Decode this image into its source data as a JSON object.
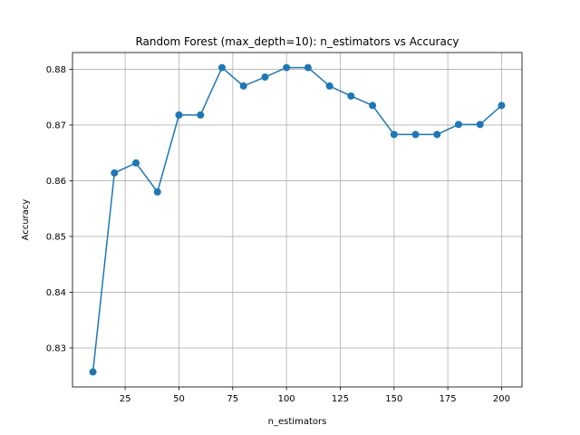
{
  "chart_data": {
    "type": "line",
    "title": "Random Forest (max_depth=10): n_estimators vs Accuracy",
    "xlabel": "n_estimators",
    "ylabel": "Accuracy",
    "x": [
      10,
      20,
      30,
      40,
      50,
      60,
      70,
      80,
      90,
      100,
      110,
      120,
      130,
      140,
      150,
      160,
      170,
      180,
      190,
      200
    ],
    "series": [
      {
        "values": [
          0.8257,
          0.8614,
          0.8632,
          0.858,
          0.8718,
          0.8718,
          0.8803,
          0.877,
          0.8786,
          0.8803,
          0.8803,
          0.877,
          0.8752,
          0.8735,
          0.8683,
          0.8683,
          0.8683,
          0.8701,
          0.8701,
          0.8735
        ],
        "color": "#1f77b4",
        "marker": "circle"
      }
    ],
    "xlim": [
      0.5,
      209.5
    ],
    "ylim": [
      0.823,
      0.883
    ],
    "xticks": [
      25,
      50,
      75,
      100,
      125,
      150,
      175,
      200
    ],
    "xtick_labels": [
      "25",
      "50",
      "75",
      "100",
      "125",
      "150",
      "175",
      "200"
    ],
    "yticks": [
      0.83,
      0.84,
      0.85,
      0.86,
      0.87,
      0.88
    ],
    "ytick_labels": [
      "0.83",
      "0.84",
      "0.85",
      "0.86",
      "0.87",
      "0.88"
    ],
    "grid": true,
    "grid_color": "#b0b0b0",
    "legend": "none"
  }
}
